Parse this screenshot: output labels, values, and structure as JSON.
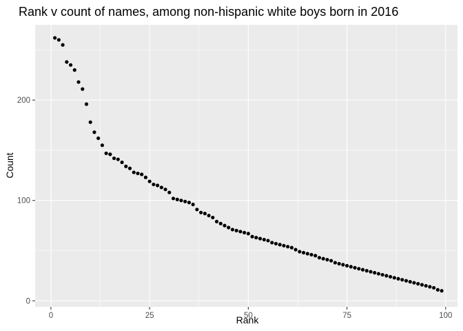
{
  "chart_data": {
    "type": "scatter",
    "title": "Rank v count of names, among non-hispanic white boys born in 2016",
    "xlabel": "Rank",
    "ylabel": "Count",
    "xlim": [
      -4,
      103
    ],
    "ylim": [
      -6,
      275
    ],
    "xticks": [
      0,
      25,
      50,
      75,
      100
    ],
    "xtick_labels": [
      "0",
      "25",
      "50",
      "75",
      "100"
    ],
    "yticks": [
      0,
      100,
      200
    ],
    "ytick_labels": [
      "0",
      "100",
      "200"
    ],
    "grid": true,
    "legend": "none",
    "point_color": "#000000",
    "panel_color": "#ebebeb",
    "x": [
      1,
      2,
      3,
      4,
      5,
      6,
      7,
      8,
      9,
      10,
      11,
      12,
      13,
      14,
      15,
      16,
      17,
      18,
      19,
      20,
      21,
      22,
      23,
      24,
      25,
      26,
      27,
      28,
      29,
      30,
      31,
      32,
      33,
      34,
      35,
      36,
      37,
      38,
      39,
      40,
      41,
      42,
      43,
      44,
      45,
      46,
      47,
      48,
      49,
      50,
      51,
      52,
      53,
      54,
      55,
      56,
      57,
      58,
      59,
      60,
      61,
      62,
      63,
      64,
      65,
      66,
      67,
      68,
      69,
      70,
      71,
      72,
      73,
      74,
      75,
      76,
      77,
      78,
      79,
      80,
      81,
      82,
      83,
      84,
      85,
      86,
      87,
      88,
      89,
      90,
      91,
      92,
      93,
      94,
      95,
      96,
      97,
      98,
      99
    ],
    "y": [
      262,
      260,
      255,
      238,
      235,
      230,
      218,
      211,
      196,
      178,
      168,
      162,
      155,
      147,
      146,
      142,
      141,
      138,
      134,
      132,
      128,
      127,
      126,
      123,
      119,
      116,
      115,
      113,
      111,
      108,
      102,
      101,
      100,
      99,
      98,
      96,
      91,
      88,
      87,
      85,
      83,
      79,
      77,
      75,
      73,
      71,
      70,
      69,
      68,
      67,
      64,
      63,
      62,
      61,
      60,
      58,
      57,
      56,
      55,
      54,
      53,
      51,
      49,
      48,
      47,
      46,
      45,
      43,
      42,
      41,
      40,
      38,
      37,
      36,
      35,
      34,
      33,
      32,
      31,
      30,
      29,
      28,
      27,
      26,
      25,
      24,
      23,
      22,
      21,
      20,
      19,
      18,
      17,
      16,
      15,
      14,
      13,
      11,
      10
    ]
  }
}
